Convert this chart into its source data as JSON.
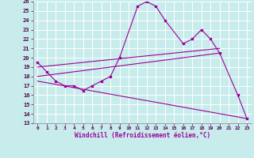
{
  "xlabel": "Windchill (Refroidissement éolien,°C)",
  "bg_color": "#c8ecec",
  "grid_color": "#ffffff",
  "line_color": "#990099",
  "xlim": [
    -0.5,
    23.5
  ],
  "ylim": [
    13,
    26
  ],
  "xticks": [
    0,
    1,
    2,
    3,
    4,
    5,
    6,
    7,
    8,
    9,
    10,
    11,
    12,
    13,
    14,
    15,
    16,
    17,
    18,
    19,
    20,
    21,
    22,
    23
  ],
  "yticks": [
    13,
    14,
    15,
    16,
    17,
    18,
    19,
    20,
    21,
    22,
    23,
    24,
    25,
    26
  ],
  "main_x": [
    0,
    1,
    2,
    3,
    4,
    5,
    6,
    7,
    8,
    9,
    11,
    12,
    13,
    14,
    16,
    17,
    18,
    19,
    20,
    22,
    23
  ],
  "main_y": [
    19.5,
    18.5,
    17.5,
    17.0,
    17.0,
    16.5,
    17.0,
    17.5,
    18.0,
    20.0,
    25.5,
    26.0,
    25.5,
    24.0,
    21.5,
    22.0,
    23.0,
    22.0,
    20.5,
    16.0,
    13.5
  ],
  "line1_x": [
    0,
    20
  ],
  "line1_y": [
    19.0,
    21.0
  ],
  "line2_x": [
    0,
    20
  ],
  "line2_y": [
    18.0,
    20.5
  ],
  "line3_x": [
    0,
    23
  ],
  "line3_y": [
    17.5,
    13.5
  ]
}
